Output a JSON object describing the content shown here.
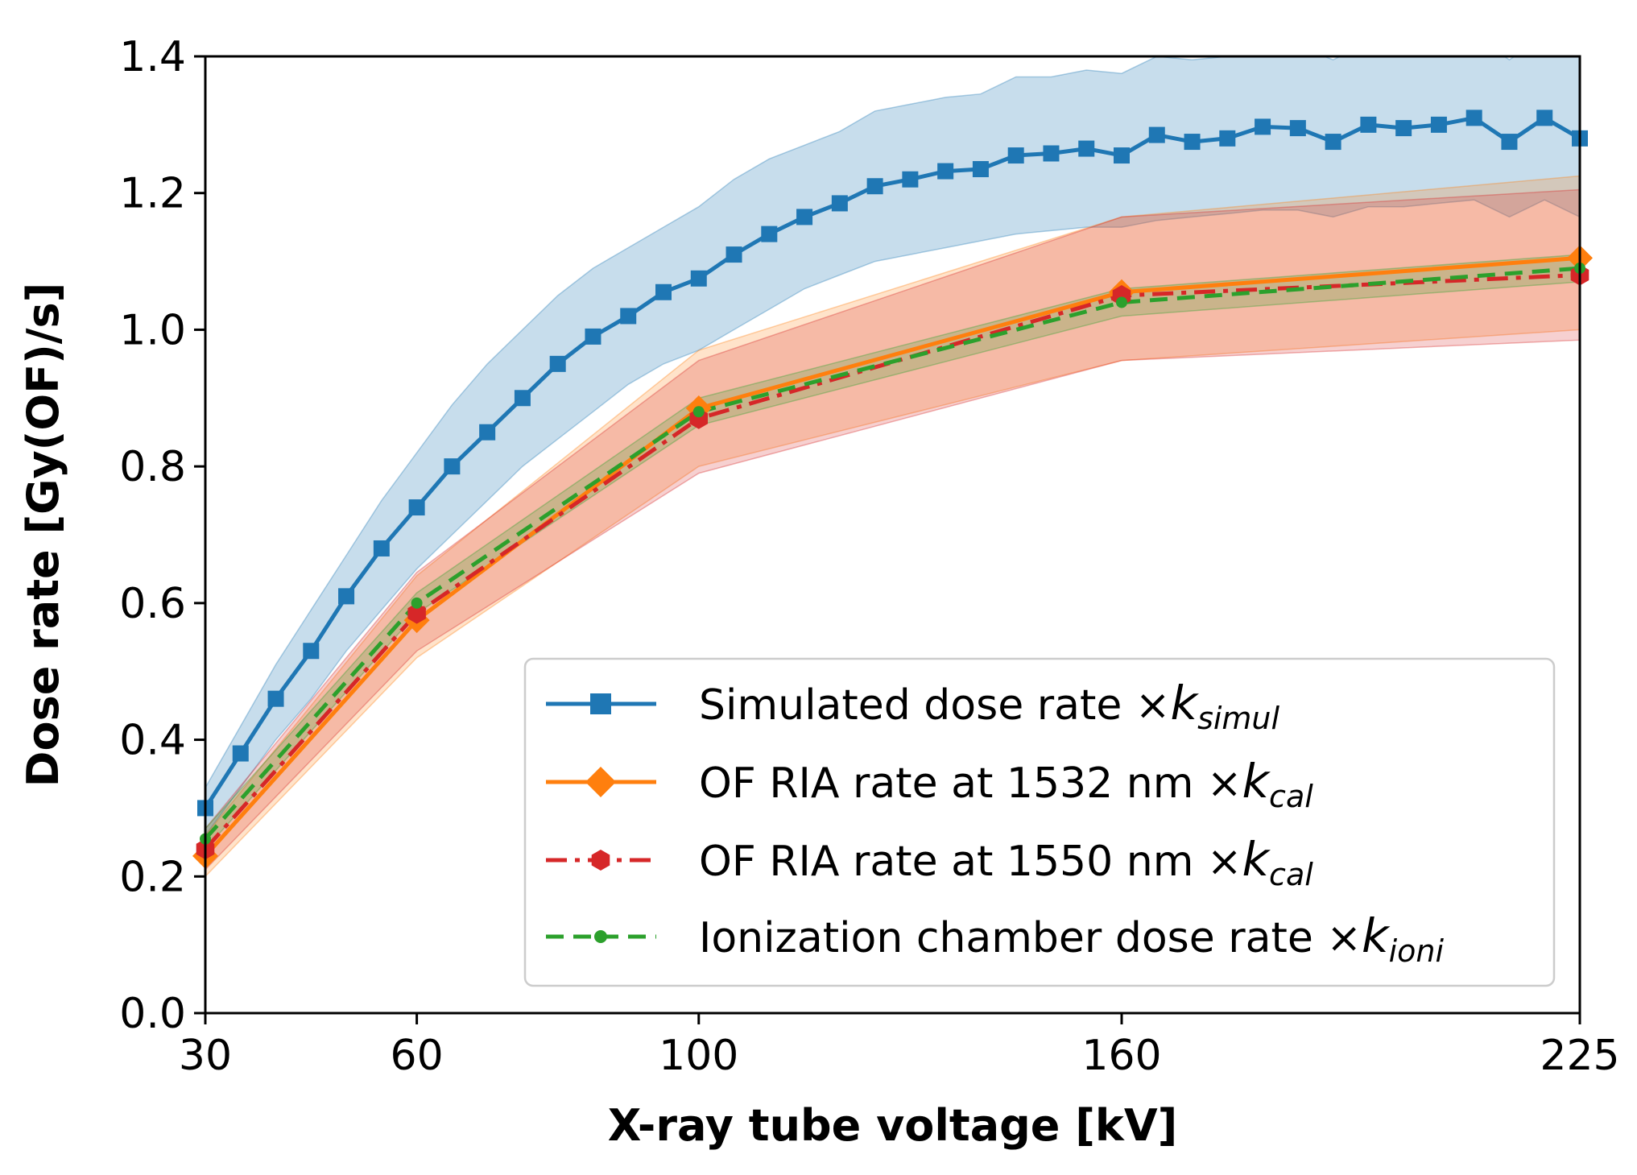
{
  "chart_data": {
    "type": "line",
    "title": "",
    "xlabel": "X-ray tube voltage [kV]",
    "ylabel": "Dose rate [Gy(OF)/s]",
    "xlim": [
      30,
      225
    ],
    "ylim": [
      0.0,
      1.4
    ],
    "xticks": [
      30,
      60,
      100,
      160,
      225
    ],
    "xtick_labels": [
      "30",
      "60",
      "100",
      "160",
      "225"
    ],
    "yticks": [
      0.0,
      0.2,
      0.4,
      0.6,
      0.8,
      1.0,
      1.2,
      1.4
    ],
    "ytick_labels": [
      "0.0",
      "0.2",
      "0.4",
      "0.6",
      "0.8",
      "1.0",
      "1.2",
      "1.4"
    ],
    "legend_position": "lower-right",
    "series": [
      {
        "name": "Simulated dose rate",
        "legend_prefix": "Simulated dose rate ×",
        "legend_k": "k",
        "legend_sub": "simul",
        "color": "#1f77b4",
        "marker": "square",
        "linestyle": "solid",
        "x": [
          30,
          35,
          40,
          45,
          50,
          55,
          60,
          65,
          70,
          75,
          80,
          85,
          90,
          95,
          100,
          105,
          110,
          115,
          120,
          125,
          130,
          135,
          140,
          145,
          150,
          155,
          160,
          165,
          170,
          175,
          180,
          185,
          190,
          195,
          200,
          205,
          210,
          215,
          220,
          225
        ],
        "y": [
          0.3,
          0.38,
          0.46,
          0.53,
          0.61,
          0.68,
          0.74,
          0.8,
          0.85,
          0.9,
          0.95,
          0.99,
          1.02,
          1.055,
          1.075,
          1.11,
          1.14,
          1.165,
          1.185,
          1.21,
          1.22,
          1.232,
          1.235,
          1.255,
          1.258,
          1.265,
          1.255,
          1.285,
          1.275,
          1.28,
          1.297,
          1.295,
          1.275,
          1.3,
          1.295,
          1.3,
          1.31,
          1.275,
          1.31,
          1.28
        ],
        "band_lower": [
          0.26,
          0.33,
          0.4,
          0.46,
          0.53,
          0.59,
          0.65,
          0.7,
          0.75,
          0.8,
          0.84,
          0.88,
          0.92,
          0.95,
          0.97,
          1.0,
          1.03,
          1.06,
          1.08,
          1.1,
          1.11,
          1.12,
          1.13,
          1.14,
          1.145,
          1.15,
          1.15,
          1.16,
          1.165,
          1.17,
          1.175,
          1.175,
          1.165,
          1.18,
          1.18,
          1.185,
          1.19,
          1.165,
          1.19,
          1.165
        ],
        "band_upper": [
          0.33,
          0.42,
          0.51,
          0.59,
          0.67,
          0.75,
          0.82,
          0.89,
          0.95,
          1.0,
          1.05,
          1.09,
          1.12,
          1.15,
          1.18,
          1.22,
          1.25,
          1.27,
          1.29,
          1.32,
          1.33,
          1.34,
          1.345,
          1.37,
          1.37,
          1.38,
          1.375,
          1.4,
          1.395,
          1.4,
          1.42,
          1.415,
          1.395,
          1.42,
          1.415,
          1.42,
          1.43,
          1.395,
          1.43,
          1.4
        ]
      },
      {
        "name": "OF RIA rate at 1532 nm",
        "legend_prefix": "OF RIA rate at 1532 nm ×",
        "legend_k": "k",
        "legend_sub": "cal",
        "color": "#ff7f0e",
        "marker": "diamond",
        "linestyle": "solid",
        "x": [
          30,
          60,
          100,
          160,
          225
        ],
        "y": [
          0.23,
          0.575,
          0.885,
          1.055,
          1.105
        ],
        "band_lower": [
          0.2,
          0.52,
          0.8,
          0.955,
          1.0
        ],
        "band_upper": [
          0.26,
          0.64,
          0.97,
          1.165,
          1.225
        ]
      },
      {
        "name": "OF RIA rate at 1550 nm",
        "legend_prefix": "OF RIA rate at 1550 nm ×",
        "legend_k": "k",
        "legend_sub": "cal",
        "color": "#d62728",
        "marker": "hexagon",
        "linestyle": "dashdot",
        "x": [
          30,
          60,
          100,
          160,
          225
        ],
        "y": [
          0.24,
          0.585,
          0.87,
          1.05,
          1.08
        ],
        "band_lower": [
          0.21,
          0.53,
          0.79,
          0.955,
          0.985
        ],
        "band_upper": [
          0.27,
          0.645,
          0.955,
          1.165,
          1.205
        ]
      },
      {
        "name": "Ionization chamber dose rate",
        "legend_prefix": "Ionization chamber dose rate ×",
        "legend_k": "k",
        "legend_sub": "ioni",
        "color": "#2ca02c",
        "marker": "circle",
        "linestyle": "dashed",
        "x": [
          30,
          60,
          100,
          160,
          225
        ],
        "y": [
          0.255,
          0.6,
          0.88,
          1.04,
          1.09
        ],
        "band_lower": [
          0.24,
          0.585,
          0.86,
          1.02,
          1.07
        ],
        "band_upper": [
          0.27,
          0.615,
          0.9,
          1.06,
          1.11
        ]
      }
    ]
  }
}
